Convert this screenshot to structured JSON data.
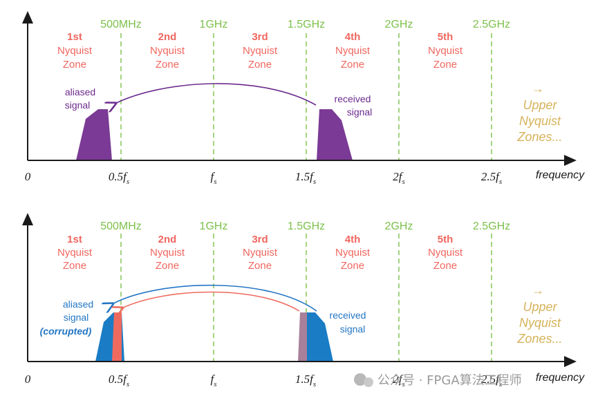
{
  "freq_labels": [
    "500MHz",
    "1GHz",
    "1.5GHz",
    "2GHz",
    "2.5GHz"
  ],
  "zones": [
    {
      "ordinal": "1st",
      "line1": "Nyquist",
      "line2": "Zone"
    },
    {
      "ordinal": "2nd",
      "line1": "Nyquist",
      "line2": "Zone"
    },
    {
      "ordinal": "3rd",
      "line1": "Nyquist",
      "line2": "Zone"
    },
    {
      "ordinal": "4th",
      "line1": "Nyquist",
      "line2": "Zone"
    },
    {
      "ordinal": "5th",
      "line1": "Nyquist",
      "line2": "Zone"
    }
  ],
  "ticks": {
    "zero": "0",
    "half_fs": "0.5f",
    "fs": "f",
    "one_half_fs": "1.5f",
    "two_fs": "2f",
    "two_half_fs": "2.5f",
    "sub": "s"
  },
  "axis_title": "frequency",
  "upper_zones": {
    "arrow": "→",
    "line1": "Upper",
    "line2": "Nyquist",
    "line3": "Zones..."
  },
  "top": {
    "aliased_line1": "aliased",
    "aliased_line2": "signal",
    "received_line1": "received",
    "received_line2": "signal"
  },
  "bottom": {
    "aliased_line1": "aliased",
    "aliased_line2": "signal",
    "corrupted": "(corrupted)",
    "received_line1": "received",
    "received_line2": "signal"
  },
  "watermark": "公众号 · FPGA算法工程师",
  "colors": {
    "purple": "#7b3a95",
    "blue": "#1a7cc4",
    "red": "#ef6a5e",
    "mauve": "#a8809a",
    "green": "#7cc04a"
  }
}
